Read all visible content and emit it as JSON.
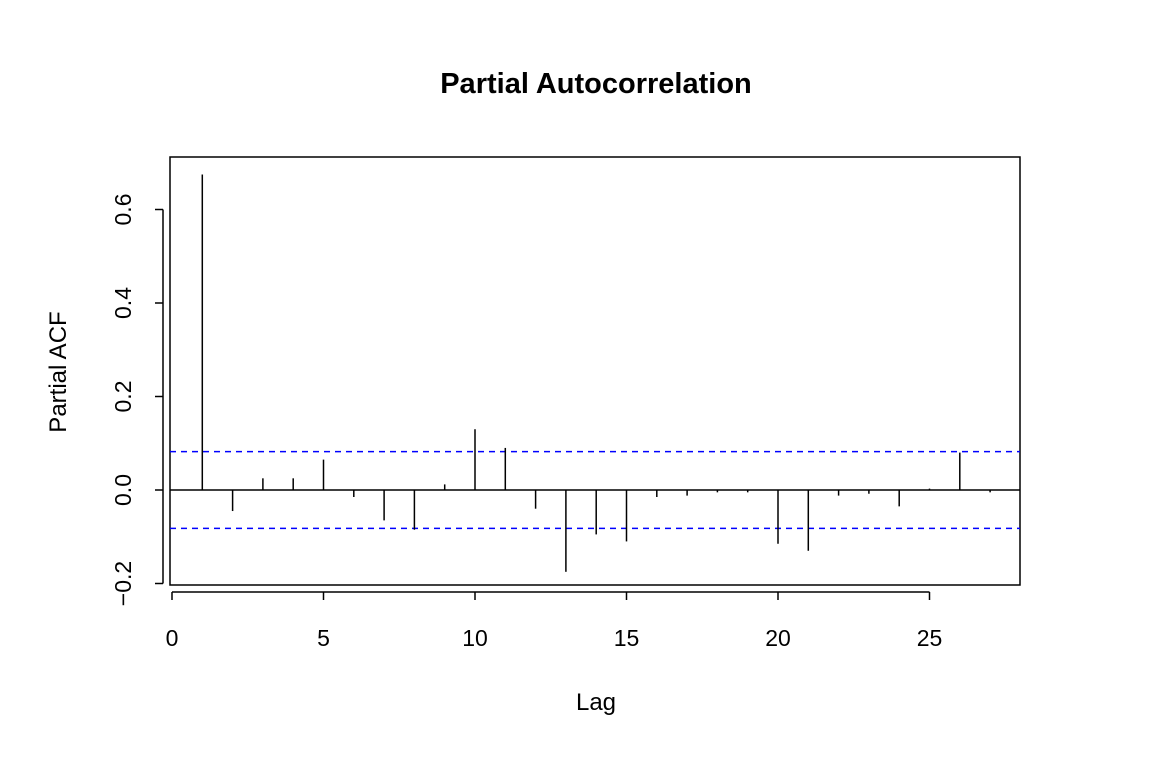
{
  "chart_data": {
    "type": "bar",
    "title": "Partial Autocorrelation",
    "xlabel": "Lag",
    "ylabel": "Partial ACF",
    "xlim": [
      0,
      28
    ],
    "ylim": [
      -0.2,
      0.65
    ],
    "x_ticks": [
      0,
      5,
      10,
      15,
      20,
      25
    ],
    "x_tick_labels": [
      "0",
      "5",
      "10",
      "15",
      "20",
      "25"
    ],
    "y_ticks": [
      -0.2,
      0.0,
      0.2,
      0.4,
      0.6
    ],
    "y_tick_labels": [
      "−0.2",
      "0.0",
      "0.2",
      "0.4",
      "0.6"
    ],
    "x": [
      1,
      2,
      3,
      4,
      5,
      6,
      7,
      8,
      9,
      10,
      11,
      12,
      13,
      14,
      15,
      16,
      17,
      18,
      19,
      20,
      21,
      22,
      23,
      24,
      25,
      26,
      27
    ],
    "values": [
      0.675,
      -0.045,
      0.025,
      0.025,
      0.065,
      -0.015,
      -0.065,
      -0.085,
      0.012,
      0.13,
      0.09,
      -0.04,
      -0.175,
      -0.095,
      -0.11,
      -0.015,
      -0.012,
      -0.005,
      -0.005,
      -0.115,
      -0.13,
      -0.012,
      -0.008,
      -0.035,
      0.003,
      0.08,
      -0.005
    ],
    "confidence_bound": 0.082,
    "grid": false,
    "colors": {
      "spike": "#000000",
      "confidence_line": "#0000ff",
      "axis": "#000000"
    }
  }
}
